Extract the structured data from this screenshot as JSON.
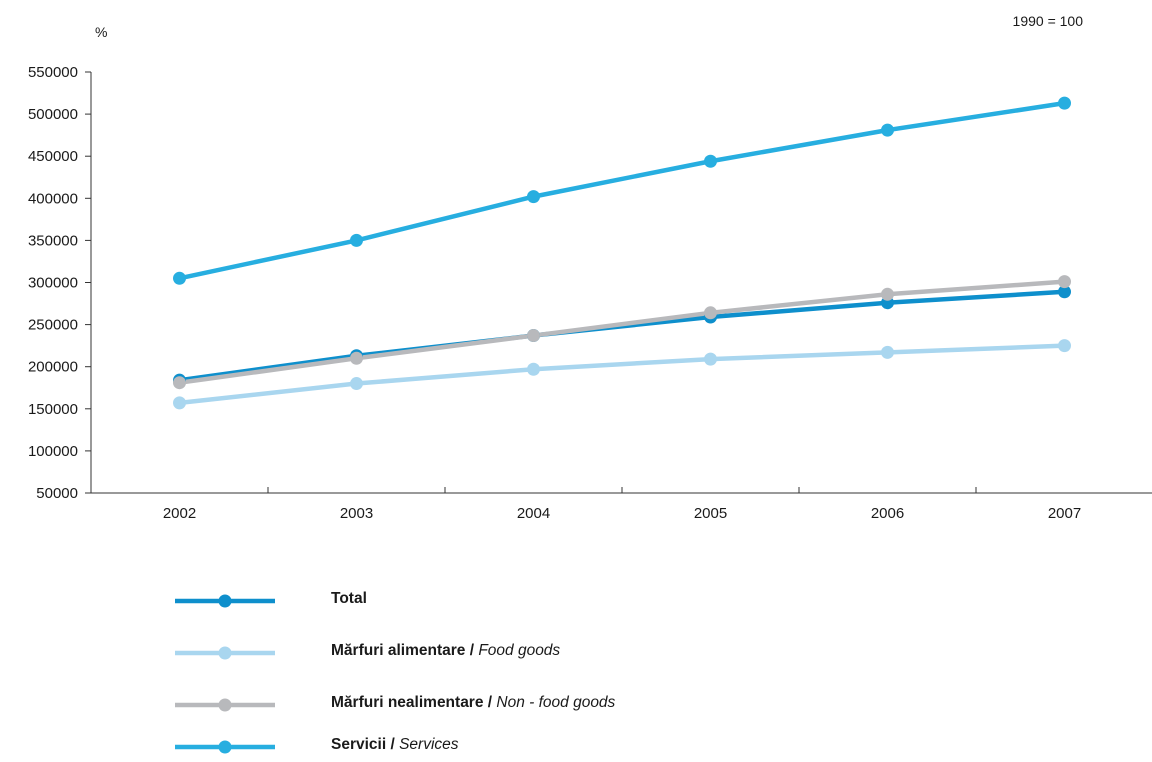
{
  "chart_data": {
    "type": "line",
    "y_unit": "%",
    "base_note": "1990 = 100",
    "x": [
      "2002",
      "2003",
      "2004",
      "2005",
      "2006",
      "2007"
    ],
    "ylim": [
      50000,
      550000
    ],
    "yticks": [
      "550000",
      "500000",
      "450000",
      "400000",
      "350000",
      "300000",
      "250000",
      "200000",
      "150000",
      "100000",
      "50000"
    ],
    "grid": false,
    "legend_position": "bottom",
    "series": [
      {
        "name": "Total",
        "name_ro": "Total",
        "name_en": "",
        "color": "#0e8fcc",
        "values": [
          184000,
          213000,
          237000,
          259000,
          276000,
          289000
        ]
      },
      {
        "name": "Mărfuri alimentare / Food goods",
        "name_ro": "Mărfuri alimentare",
        "name_en": "Food goods",
        "color": "#a9d6ef",
        "values": [
          157000,
          180000,
          197000,
          209000,
          217000,
          225000
        ]
      },
      {
        "name": "Mărfuri nealimentare / Non - food goods",
        "name_ro": "Mărfuri nealimentare",
        "name_en": "Non - food goods",
        "color": "#b8b9bc",
        "values": [
          181000,
          210000,
          237000,
          264000,
          286000,
          301000
        ]
      },
      {
        "name": "Servicii / Services",
        "name_ro": "Servicii",
        "name_en": "Services",
        "color": "#27aee0",
        "values": [
          305000,
          350000,
          402000,
          444000,
          481000,
          513000
        ]
      }
    ]
  }
}
